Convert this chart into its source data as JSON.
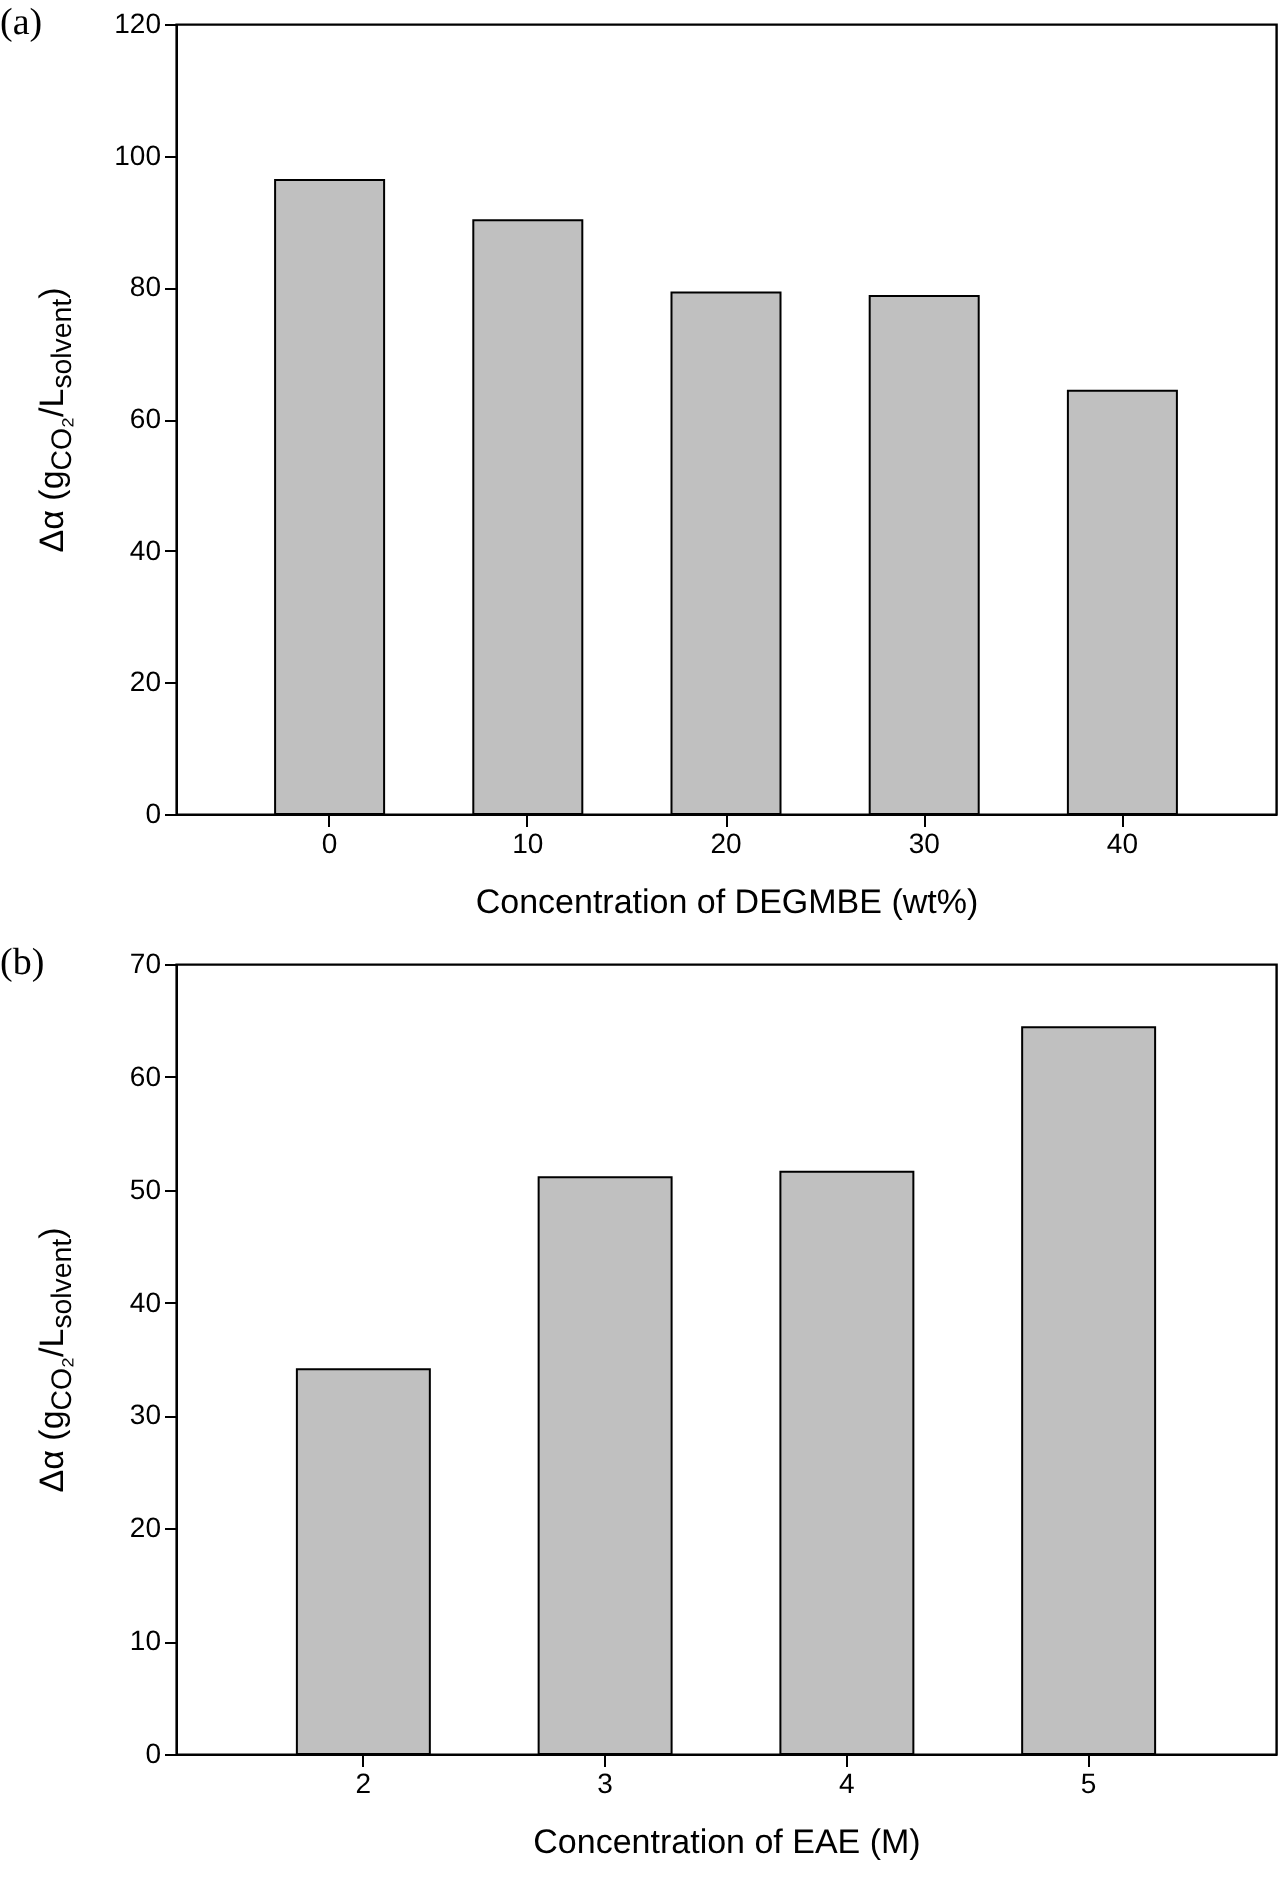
{
  "chart_data": [
    {
      "type": "bar",
      "title": "(a)",
      "xlabel": "Concentration of DEGMBE (wt%)",
      "ylabel": "Δα (g$_{CO₂}$/L$_{solvent}$)",
      "categories": [
        "0",
        "10",
        "20",
        "30",
        "40"
      ],
      "values": [
        96.3,
        90.2,
        79.2,
        78.7,
        64.3
      ],
      "color": "#c0c0c0",
      "ylim": [
        0,
        120
      ],
      "yticks": [
        0,
        20,
        40,
        60,
        80,
        100,
        120
      ]
    },
    {
      "type": "bar",
      "title": "(b)",
      "xlabel": "Concentration of EAE (M)",
      "ylabel": "Δα (g$_{CO₂}$/L$_{solvent}$)",
      "categories": [
        "2",
        "3",
        "4",
        "5"
      ],
      "values": [
        34.1,
        51.1,
        51.6,
        64.4
      ],
      "color": "#c0c0c0",
      "ylim": [
        0,
        70
      ],
      "yticks": [
        0,
        10,
        20,
        30,
        40,
        50,
        60,
        70
      ]
    }
  ]
}
